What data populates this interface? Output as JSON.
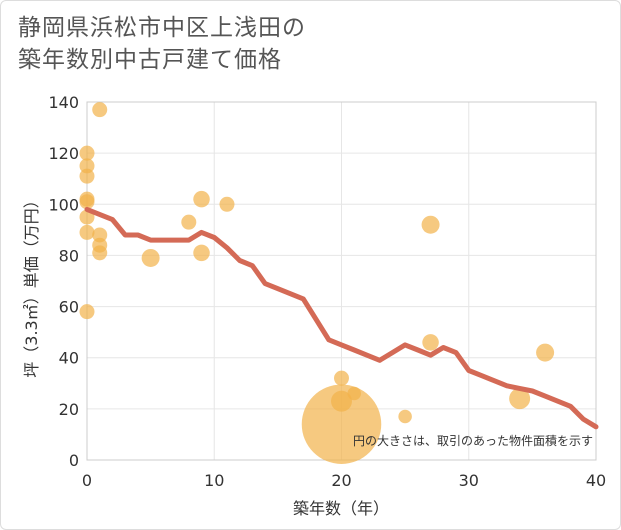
{
  "title": {
    "line1": "静岡県浜松市中区上浅田の",
    "line2": "築年数別中古戸建て価格"
  },
  "chart_data": {
    "type": "scatter",
    "title": "静岡県浜松市中区上浅田の 築年数別中古戸建て価格",
    "xlabel": "築年数（年）",
    "ylabel": "坪（3.3㎡）単価（万円）",
    "xlim": [
      0,
      40
    ],
    "ylim": [
      0,
      140
    ],
    "xticks": [
      0,
      10,
      20,
      30,
      40
    ],
    "yticks": [
      0,
      20,
      40,
      60,
      80,
      100,
      120,
      140
    ],
    "grid": true,
    "annotation": "円の大きさは、取引のあった物件面積を示す",
    "colors": {
      "points": "#f2b24a",
      "line": "#d46a56"
    },
    "points": [
      {
        "x": 0,
        "y": 120,
        "size": 1
      },
      {
        "x": 0,
        "y": 115,
        "size": 1
      },
      {
        "x": 0,
        "y": 111,
        "size": 1
      },
      {
        "x": 0,
        "y": 102,
        "size": 1
      },
      {
        "x": 0,
        "y": 101,
        "size": 1
      },
      {
        "x": 0,
        "y": 95,
        "size": 1
      },
      {
        "x": 0,
        "y": 89,
        "size": 1
      },
      {
        "x": 0,
        "y": 58,
        "size": 1
      },
      {
        "x": 1,
        "y": 137,
        "size": 1
      },
      {
        "x": 1,
        "y": 88,
        "size": 1
      },
      {
        "x": 1,
        "y": 84,
        "size": 1
      },
      {
        "x": 1,
        "y": 81,
        "size": 1
      },
      {
        "x": 5,
        "y": 79,
        "size": 1.2
      },
      {
        "x": 8,
        "y": 93,
        "size": 1
      },
      {
        "x": 9,
        "y": 102,
        "size": 1.1
      },
      {
        "x": 9,
        "y": 81,
        "size": 1.1
      },
      {
        "x": 11,
        "y": 100,
        "size": 1
      },
      {
        "x": 20,
        "y": 32,
        "size": 1
      },
      {
        "x": 20,
        "y": 23,
        "size": 1.4
      },
      {
        "x": 20,
        "y": 14,
        "size": 5.3
      },
      {
        "x": 21,
        "y": 26,
        "size": 0.9
      },
      {
        "x": 25,
        "y": 17,
        "size": 0.9
      },
      {
        "x": 27,
        "y": 92,
        "size": 1.2
      },
      {
        "x": 27,
        "y": 46,
        "size": 1.1
      },
      {
        "x": 34,
        "y": 24,
        "size": 1.4
      },
      {
        "x": 36,
        "y": 42,
        "size": 1.2
      }
    ],
    "trend": {
      "x": [
        0,
        2,
        3,
        4,
        5,
        6,
        7,
        8,
        9,
        10,
        11,
        12,
        13,
        14,
        15,
        16,
        17,
        18,
        19,
        20,
        21,
        22,
        23,
        24,
        25,
        26,
        27,
        28,
        29,
        30,
        31,
        32,
        33,
        34,
        35,
        36,
        37,
        38,
        39,
        40
      ],
      "y": [
        98,
        94,
        88,
        88,
        86,
        86,
        86,
        86,
        89,
        87,
        83,
        78,
        76,
        69,
        67,
        65,
        63,
        55,
        47,
        45,
        43,
        41,
        39,
        42,
        45,
        43,
        41,
        44,
        42,
        35,
        33,
        31,
        29,
        28,
        27,
        25,
        23,
        21,
        16,
        13
      ]
    }
  }
}
